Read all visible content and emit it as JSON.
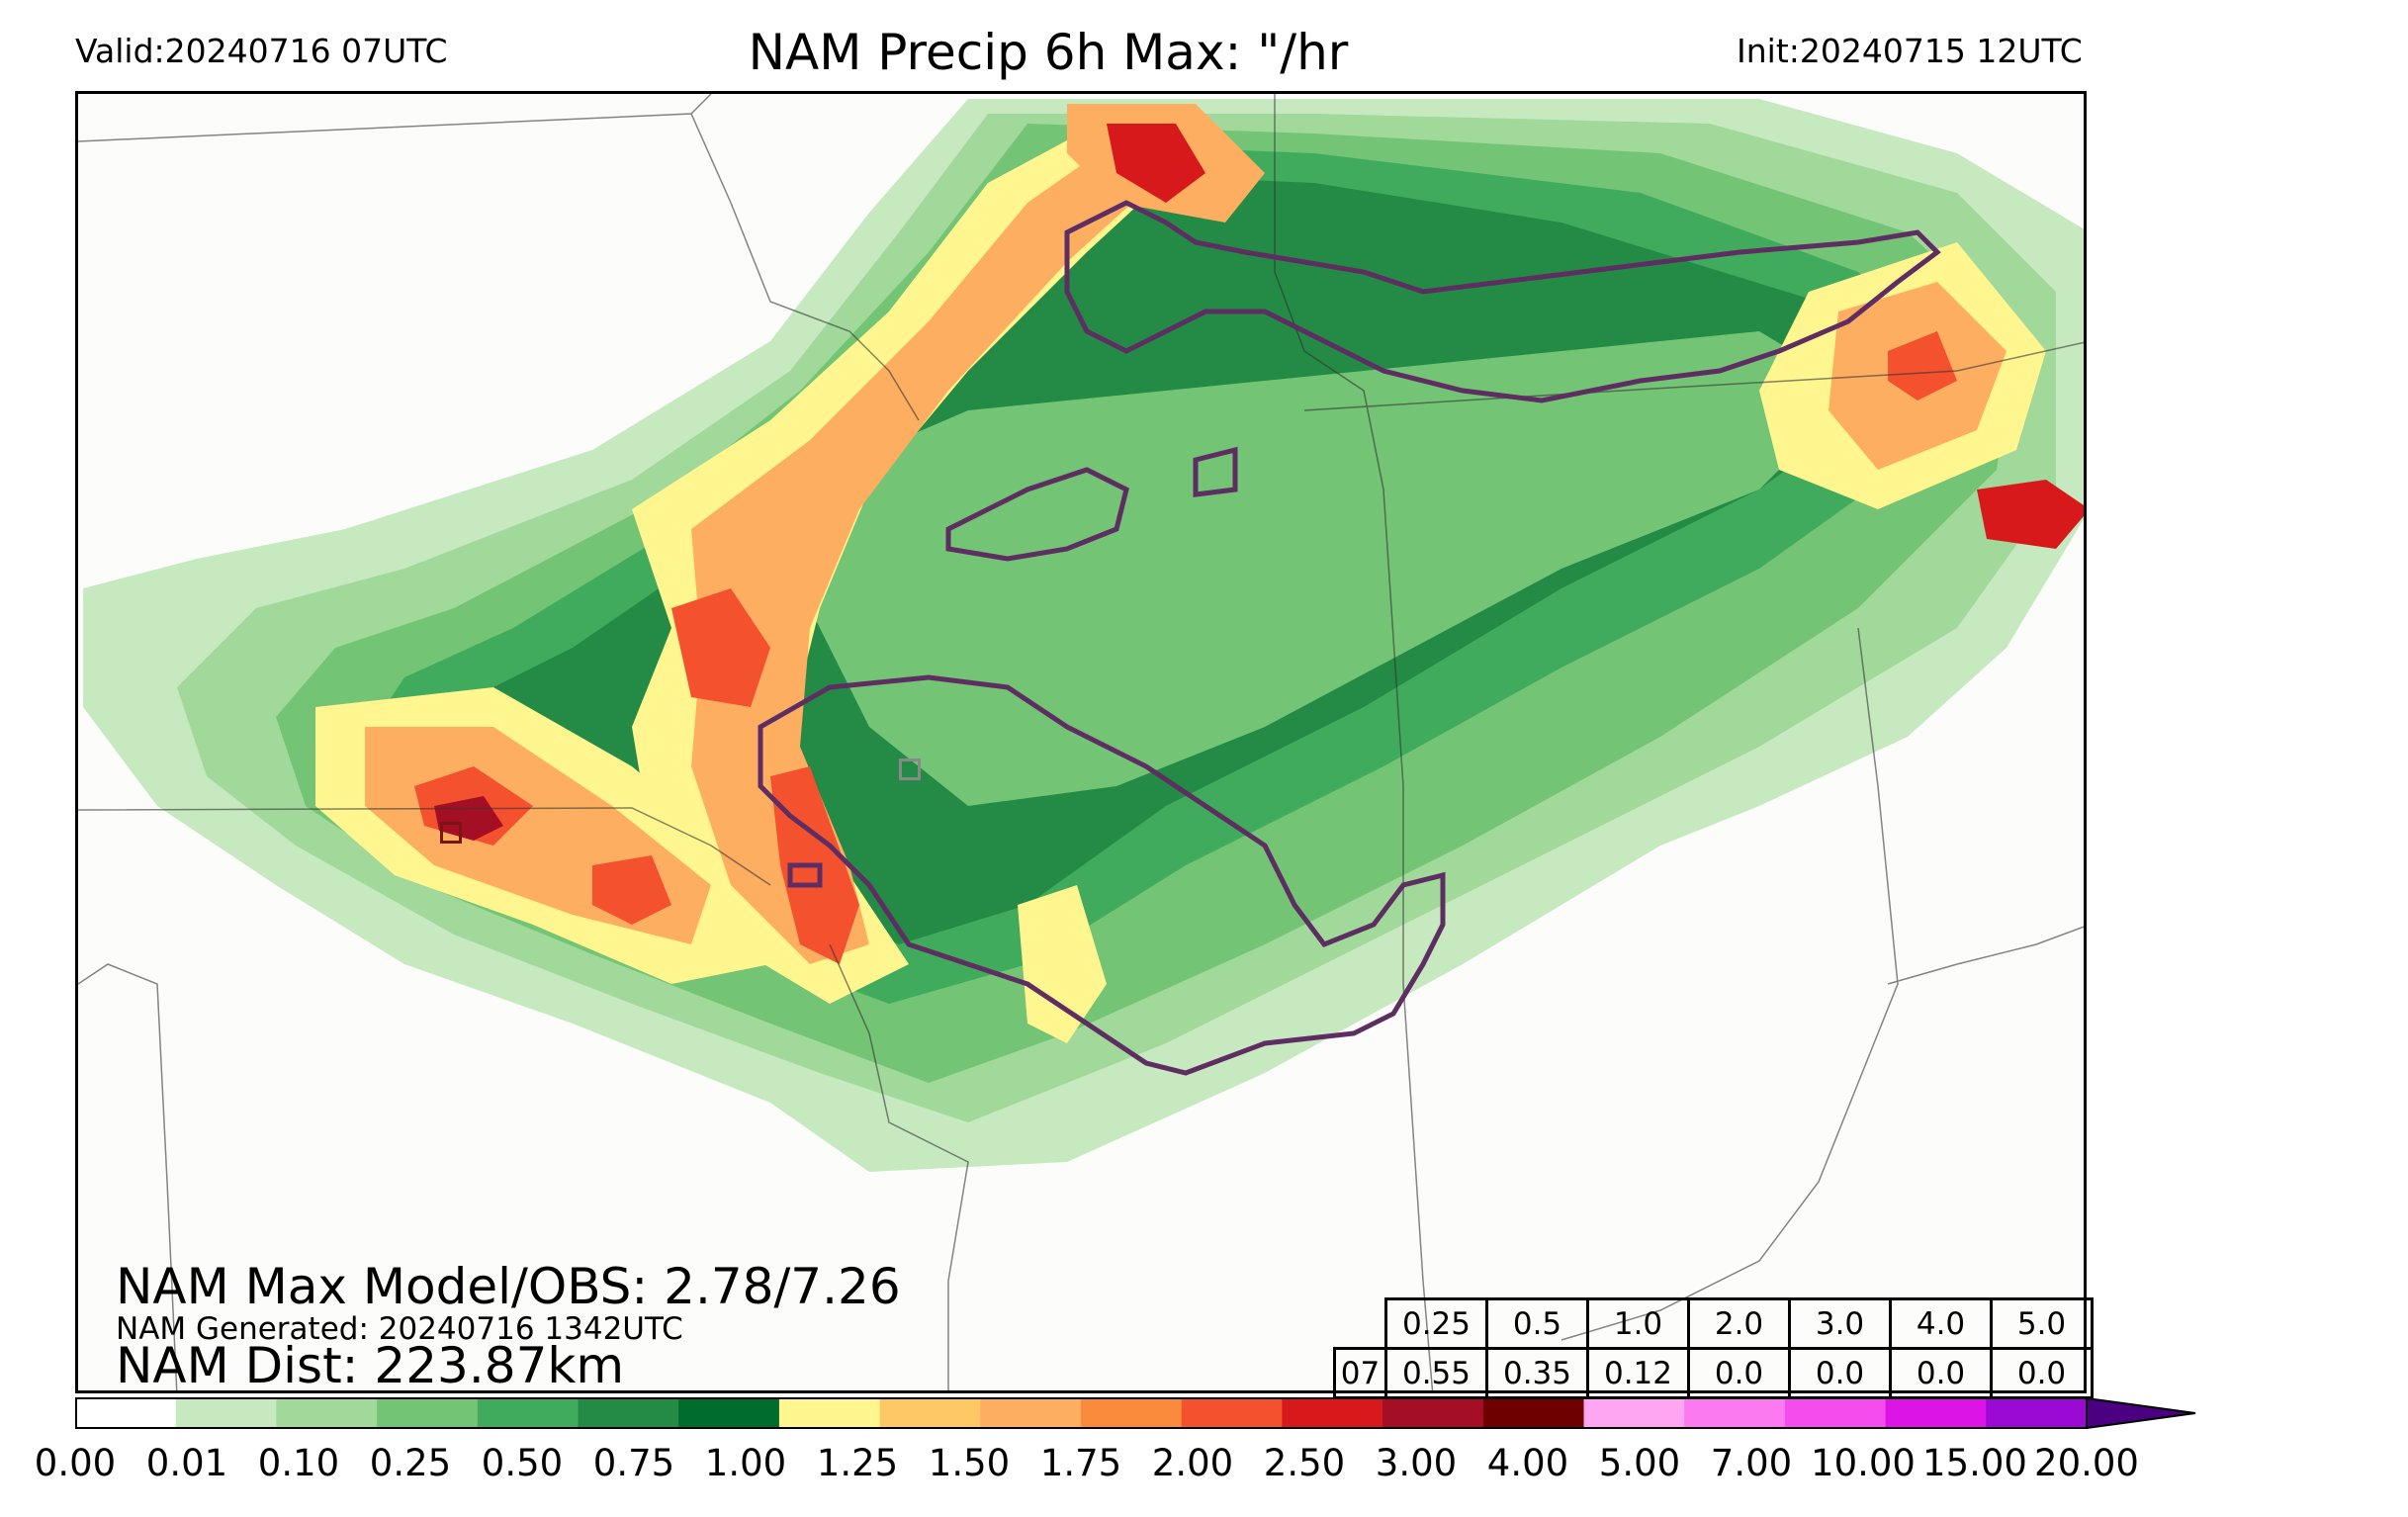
{
  "header": {
    "valid": "Valid:20240716 07UTC",
    "title": "NAM Precip 6h Max: \"/hr",
    "init": "Init:20240715 12UTC"
  },
  "stats": {
    "max_model_obs": "NAM Max Model/OBS: 2.78/7.26",
    "generated": "NAM Generated: 20240716 1342UTC",
    "dist": "NAM Dist: 223.87km"
  },
  "threshold_table": {
    "thresholds": [
      "0.25",
      "0.5",
      "1.0",
      "2.0",
      "3.0",
      "4.0",
      "5.0"
    ],
    "row_label": "07",
    "values": [
      "0.55",
      "0.35",
      "0.12",
      "0.0",
      "0.0",
      "0.0",
      "0.0"
    ]
  },
  "colorbar": {
    "ticks": [
      "0.00",
      "0.01",
      "0.10",
      "0.25",
      "0.50",
      "0.75",
      "1.00",
      "1.25",
      "1.50",
      "1.75",
      "2.00",
      "2.50",
      "3.00",
      "4.00",
      "5.00",
      "7.00",
      "10.00",
      "15.00",
      "20.00"
    ],
    "colors": [
      "#ffffff",
      "#c7e9c0",
      "#a1d99b",
      "#74c476",
      "#41ab5d",
      "#238b45",
      "#006d2c",
      "#fff68f",
      "#fec965",
      "#fdae61",
      "#fb8b3c",
      "#f4512e",
      "#d7191c",
      "#a50f25",
      "#6f0000",
      "#ffa6f3",
      "#fb7af0",
      "#f54ded",
      "#dc14e6",
      "#9b09d4"
    ],
    "extend": "max"
  },
  "map": {
    "field": "precipitation rate max",
    "contour_color": "#5e2d61",
    "boundary_color": "#333333",
    "markers": [
      {
        "name": "model-max-marker",
        "color": "#7a1515"
      },
      {
        "name": "obs-max-marker",
        "color": "#888888"
      }
    ]
  }
}
